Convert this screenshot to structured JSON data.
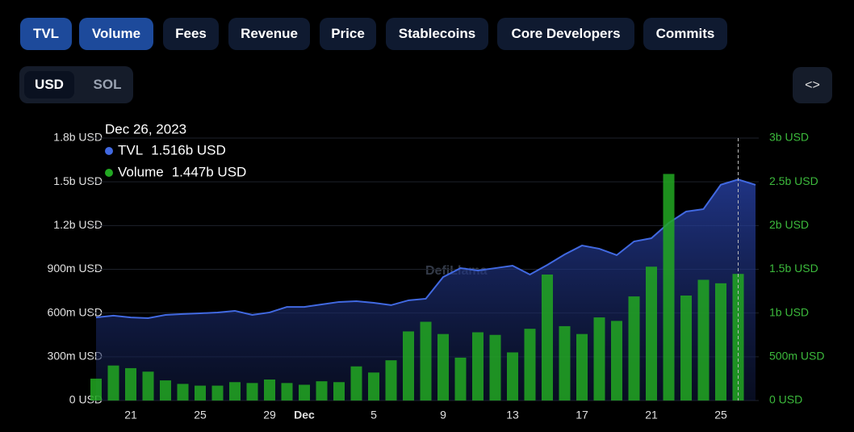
{
  "tabs": [
    "TVL",
    "Volume",
    "Fees",
    "Revenue",
    "Price",
    "Stablecoins",
    "Core Developers",
    "Commits"
  ],
  "currency": [
    "USD",
    "SOL"
  ],
  "chart_data": {
    "type": "bar-line",
    "watermark": "DefiLlama",
    "tooltip": {
      "date": "Dec 26, 2023",
      "labels": [
        "1.516b USD",
        "1.447b USD"
      ]
    },
    "x": [
      "2023-11-19",
      "2023-11-20",
      "2023-11-21",
      "2023-11-22",
      "2023-11-23",
      "2023-11-24",
      "2023-11-25",
      "2023-11-26",
      "2023-11-27",
      "2023-11-28",
      "2023-11-29",
      "2023-11-30",
      "2023-12-01",
      "2023-12-02",
      "2023-12-03",
      "2023-12-04",
      "2023-12-05",
      "2023-12-06",
      "2023-12-07",
      "2023-12-08",
      "2023-12-09",
      "2023-12-10",
      "2023-12-11",
      "2023-12-12",
      "2023-12-13",
      "2023-12-14",
      "2023-12-15",
      "2023-12-16",
      "2023-12-17",
      "2023-12-18",
      "2023-12-19",
      "2023-12-20",
      "2023-12-21",
      "2023-12-22",
      "2023-12-23",
      "2023-12-24",
      "2023-12-25",
      "2023-12-26",
      "2023-12-27"
    ],
    "xticks": [
      {
        "value": "2023-11-21",
        "label": "21"
      },
      {
        "value": "2023-11-25",
        "label": "25"
      },
      {
        "value": "2023-11-29",
        "label": "29"
      },
      {
        "value": "2023-12-01",
        "label": "Dec"
      },
      {
        "value": "2023-12-05",
        "label": "5"
      },
      {
        "value": "2023-12-09",
        "label": "9"
      },
      {
        "value": "2023-12-13",
        "label": "13"
      },
      {
        "value": "2023-12-17",
        "label": "17"
      },
      {
        "value": "2023-12-21",
        "label": "21"
      },
      {
        "value": "2023-12-25",
        "label": "25"
      }
    ],
    "ylim": [
      0,
      1800
    ],
    "yticks": [
      {
        "value": 0,
        "label": "0 USD"
      },
      {
        "value": 300,
        "label": "300m USD"
      },
      {
        "value": 600,
        "label": "600m USD"
      },
      {
        "value": 900,
        "label": "900m USD"
      },
      {
        "value": 1200,
        "label": "1.2b USD"
      },
      {
        "value": 1500,
        "label": "1.5b USD"
      },
      {
        "value": 1800,
        "label": "1.8b USD"
      }
    ],
    "y2lim": [
      0,
      3000
    ],
    "y2ticks": [
      {
        "value": 0,
        "label": "0 USD"
      },
      {
        "value": 500,
        "label": "500m USD"
      },
      {
        "value": 1000,
        "label": "1b USD"
      },
      {
        "value": 1500,
        "label": "1.5b USD"
      },
      {
        "value": 2000,
        "label": "2b USD"
      },
      {
        "value": 2500,
        "label": "2.5b USD"
      },
      {
        "value": 3000,
        "label": "3b USD"
      }
    ],
    "grid": true,
    "series": [
      {
        "name": "TVL",
        "color": "#4169e1",
        "kind": "line",
        "values": [
          570,
          582,
          570,
          565,
          587,
          593,
          598,
          604,
          615,
          587,
          604,
          642,
          642,
          659,
          676,
          681,
          670,
          654,
          687,
          698,
          847,
          908,
          892,
          908,
          925,
          864,
          930,
          1002,
          1063,
          1041,
          997,
          1091,
          1113,
          1218,
          1296,
          1313,
          1480,
          1516,
          1479
        ]
      },
      {
        "name": "Volume",
        "color": "#22a822",
        "kind": "bar",
        "axis": "y2",
        "values": [
          250,
          400,
          370,
          330,
          230,
          190,
          170,
          170,
          210,
          200,
          240,
          200,
          180,
          220,
          210,
          390,
          320,
          460,
          790,
          900,
          760,
          490,
          780,
          750,
          550,
          820,
          1440,
          850,
          760,
          950,
          910,
          1190,
          1530,
          2590,
          1200,
          1380,
          1340,
          1447,
          null
        ]
      }
    ]
  }
}
